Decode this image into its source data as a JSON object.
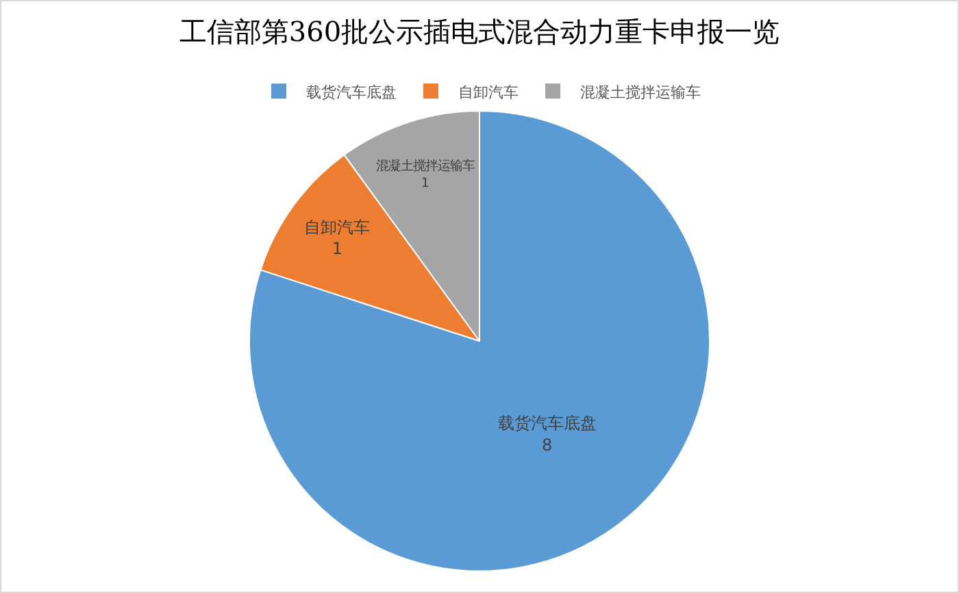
{
  "chart_data": {
    "type": "pie",
    "title": "工信部第360批公示插电式混合动力重卡申报一览",
    "categories": [
      "载货汽车底盘",
      "自卸汽车",
      "混凝土搅拌运输车"
    ],
    "values": [
      8,
      1,
      1
    ],
    "colors": [
      "#5b9bd5",
      "#ed7d31",
      "#a5a5a5"
    ],
    "data_labels": true,
    "legend": "top"
  }
}
